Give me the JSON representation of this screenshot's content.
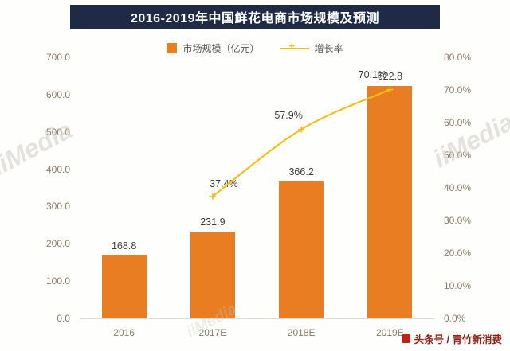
{
  "title": "2016-2019年中国鲜花电商市场规模及预测",
  "legend": {
    "bar_label": "市场规模（亿元）",
    "line_label": "增长率"
  },
  "watermark": "iiMedia",
  "attribution": "头条号 / 青竹新消费",
  "colors": {
    "bar": "#e87d22",
    "line": "#f0c11a",
    "title_bg": "#1f2a47",
    "axis_text": "#8c7b64",
    "attribution_text": "#8e1f17"
  },
  "chart_data": {
    "type": "bar",
    "title": "2016-2019年中国鲜花电商市场规模及预测",
    "categories": [
      "2016",
      "2017E",
      "2018E",
      "2019E"
    ],
    "series": [
      {
        "name": "市场规模（亿元）",
        "type": "bar",
        "axis": "left",
        "values": [
          168.8,
          231.9,
          366.2,
          622.8
        ],
        "labels": [
          "168.8",
          "231.9",
          "366.2",
          "622.8"
        ]
      },
      {
        "name": "增长率",
        "type": "line",
        "axis": "right",
        "values": [
          null,
          37.4,
          57.9,
          70.1
        ],
        "labels": [
          null,
          "37.4%",
          "57.9%",
          "70.1%"
        ]
      }
    ],
    "left_axis": {
      "min": 0,
      "max": 700,
      "step": 100,
      "tick_labels": [
        "700.0",
        "600.0",
        "500.0",
        "400.0",
        "300.0",
        "200.0",
        "100.0",
        "0.0"
      ]
    },
    "right_axis": {
      "min": 0,
      "max": 80,
      "step": 10,
      "tick_labels": [
        "80.0%",
        "70.0%",
        "60.0%",
        "50.0%",
        "40.0%",
        "30.0%",
        "20.0%",
        "10.0%",
        "0.0%"
      ]
    },
    "grid": false,
    "legend_position": "top"
  }
}
